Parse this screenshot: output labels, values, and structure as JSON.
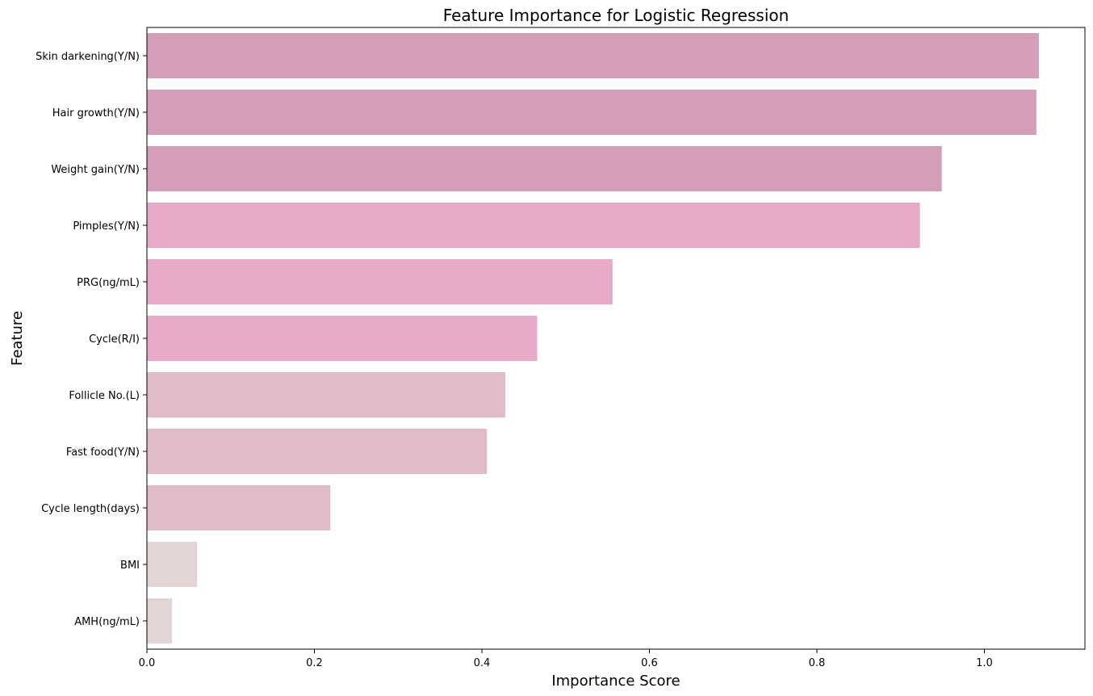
{
  "chart_data": {
    "type": "bar",
    "orientation": "horizontal",
    "title": "Feature Importance for Logistic Regression",
    "xlabel": "Importance Score",
    "ylabel": "Feature",
    "xlim": [
      0,
      1.12
    ],
    "xticks": [
      0.0,
      0.2,
      0.4,
      0.6,
      0.8,
      1.0
    ],
    "xtick_labels": [
      "0.0",
      "0.2",
      "0.4",
      "0.6",
      "0.8",
      "1.0"
    ],
    "grid": false,
    "categories": [
      "Skin darkening(Y/N)",
      "Hair growth(Y/N)",
      "Weight gain(Y/N)",
      "Pimples(Y/N)",
      "PRG(ng/mL)",
      "Cycle(R/I)",
      "Follicle No.(L)",
      "Fast food(Y/N)",
      "Cycle length(days)",
      "BMI",
      "AMH(ng/mL)"
    ],
    "values": [
      1.065,
      1.062,
      0.949,
      0.923,
      0.556,
      0.466,
      0.428,
      0.406,
      0.219,
      0.06,
      0.03
    ],
    "colors": [
      "#d49db9",
      "#d49db9",
      "#d49db9",
      "#e6aac8",
      "#e6aac8",
      "#e6aac8",
      "#dfbcc8",
      "#dfbcc8",
      "#dfbcc8",
      "#e3d4d6",
      "#e3d4d6"
    ]
  }
}
